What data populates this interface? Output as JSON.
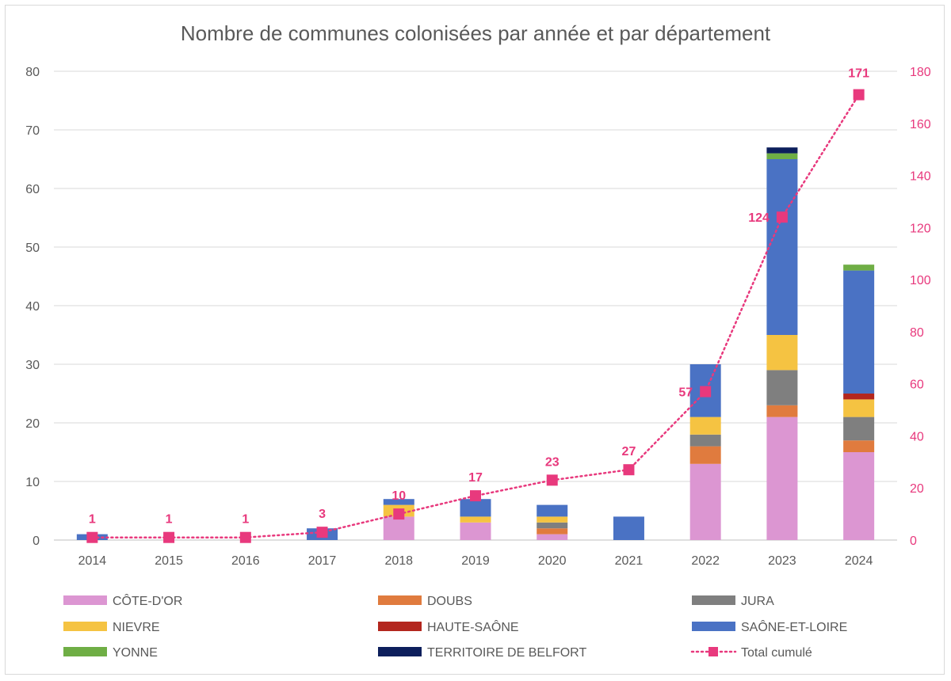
{
  "chart_data": {
    "type": "bar",
    "stacked": true,
    "title": "Nombre de communes colonisées par année et par département",
    "categories": [
      "2014",
      "2015",
      "2016",
      "2017",
      "2018",
      "2019",
      "2020",
      "2021",
      "2022",
      "2023",
      "2024"
    ],
    "y_left": {
      "range": [
        0,
        80
      ],
      "ticks": [
        "0",
        "10",
        "20",
        "30",
        "40",
        "50",
        "60",
        "70",
        "80"
      ]
    },
    "y_right": {
      "range": [
        0,
        180
      ],
      "ticks": [
        "0",
        "20",
        "40",
        "60",
        "80",
        "100",
        "120",
        "140",
        "160",
        "180"
      ]
    },
    "grid": true,
    "legend_position": "bottom",
    "series": [
      {
        "name": "CÔTE-D'OR",
        "color": "#dc96d2",
        "values": [
          0,
          0,
          0,
          0,
          4,
          3,
          1,
          0,
          13,
          21,
          15
        ]
      },
      {
        "name": "DOUBS",
        "color": "#e07b3e",
        "values": [
          0,
          0,
          0,
          0,
          0,
          0,
          1,
          0,
          3,
          2,
          2
        ]
      },
      {
        "name": "JURA",
        "color": "#7f7f7f",
        "values": [
          0,
          0,
          0,
          0,
          0,
          0,
          1,
          0,
          2,
          6,
          4
        ]
      },
      {
        "name": "NIEVRE",
        "color": "#f5c342",
        "values": [
          0,
          0,
          0,
          0,
          2,
          1,
          1,
          0,
          3,
          6,
          3
        ]
      },
      {
        "name": "HAUTE-SAÔNE",
        "color": "#b3261e",
        "values": [
          0,
          0,
          0,
          0,
          0,
          0,
          0,
          0,
          0,
          0,
          1
        ]
      },
      {
        "name": "SAÔNE-ET-LOIRE",
        "color": "#4a72c4",
        "values": [
          1,
          0,
          0,
          2,
          1,
          3,
          2,
          4,
          9,
          30,
          21
        ]
      },
      {
        "name": "YONNE",
        "color": "#6fae45",
        "values": [
          0,
          0,
          0,
          0,
          0,
          0,
          0,
          0,
          0,
          1,
          1
        ]
      },
      {
        "name": "TERRITOIRE DE BELFORT",
        "color": "#0d1f5c",
        "values": [
          0,
          0,
          0,
          0,
          0,
          0,
          0,
          0,
          0,
          1,
          0
        ]
      }
    ],
    "line": {
      "name": "Total cumulé",
      "axis": "right",
      "color": "#e8397d",
      "style": "dotted",
      "marker": "square",
      "values": [
        1,
        1,
        1,
        3,
        10,
        17,
        23,
        27,
        57,
        124,
        171
      ],
      "labels": [
        "1",
        "1",
        "1",
        "3",
        "10",
        "17",
        "23",
        "27",
        "57",
        "124",
        "171"
      ]
    }
  }
}
